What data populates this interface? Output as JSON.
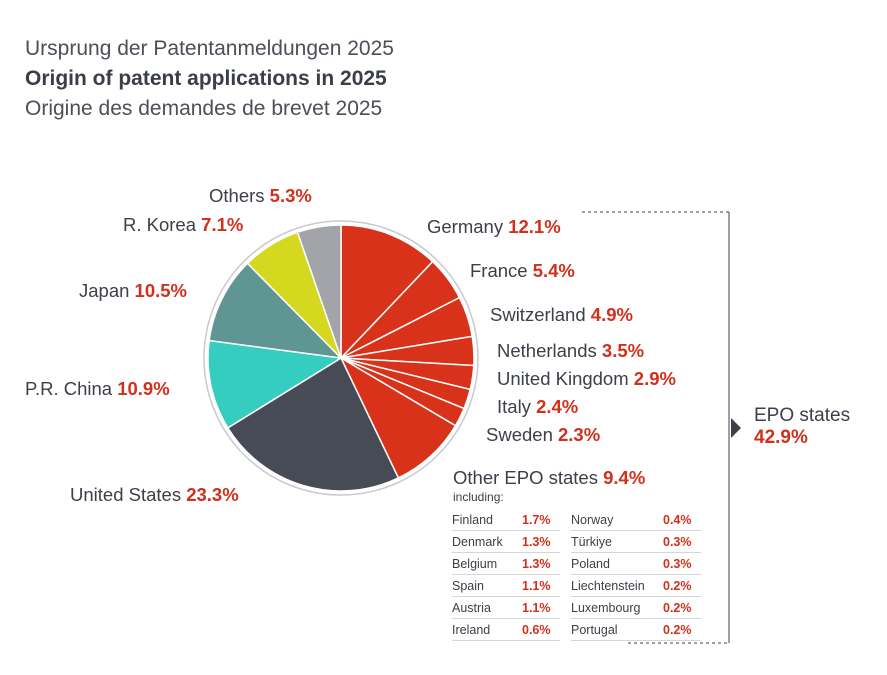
{
  "titles": {
    "de": "Ursprung der Patentanmeldungen 2025",
    "en": "Origin of patent applications in 2025",
    "fr": "Origine des demandes de brevet 2025"
  },
  "chart_data": {
    "type": "pie",
    "title": "Origin of patent applications in 2025",
    "slices": [
      {
        "name": "Germany",
        "pct_label": "12.1%",
        "value": 12.1,
        "color": "#d8321a"
      },
      {
        "name": "France",
        "pct_label": "5.4%",
        "value": 5.4,
        "color": "#d8321a"
      },
      {
        "name": "Switzerland",
        "pct_label": "4.9%",
        "value": 4.9,
        "color": "#d8321a"
      },
      {
        "name": "Netherlands",
        "pct_label": "3.5%",
        "value": 3.5,
        "color": "#d8321a"
      },
      {
        "name": "United Kingdom",
        "pct_label": "2.9%",
        "value": 2.9,
        "color": "#d8321a"
      },
      {
        "name": "Italy",
        "pct_label": "2.4%",
        "value": 2.4,
        "color": "#d8321a"
      },
      {
        "name": "Sweden",
        "pct_label": "2.3%",
        "value": 2.3,
        "color": "#d8321a"
      },
      {
        "name": "Other EPO states",
        "pct_label": "9.4%",
        "value": 9.4,
        "color": "#d8321a"
      },
      {
        "name": "United States",
        "pct_label": "23.3%",
        "value": 23.3,
        "color": "#464b56"
      },
      {
        "name": "P.R. China",
        "pct_label": "10.9%",
        "value": 10.9,
        "color": "#36cdc1"
      },
      {
        "name": "Japan",
        "pct_label": "10.5%",
        "value": 10.5,
        "color": "#5f9592"
      },
      {
        "name": "R. Korea",
        "pct_label": "7.1%",
        "value": 7.1,
        "color": "#d4d81e"
      },
      {
        "name": "Others",
        "pct_label": "5.3%",
        "value": 5.3,
        "color": "#a2a4aa"
      }
    ],
    "group": {
      "name": "EPO states",
      "pct_label": "42.9%",
      "value": 42.9
    },
    "other_epo": {
      "including_label": "including:",
      "col1": [
        {
          "country": "Finland",
          "pct": "1.7%"
        },
        {
          "country": "Denmark",
          "pct": "1.3%"
        },
        {
          "country": "Belgium",
          "pct": "1.3%"
        },
        {
          "country": "Spain",
          "pct": "1.1%"
        },
        {
          "country": "Austria",
          "pct": "1.1%"
        },
        {
          "country": "Ireland",
          "pct": "0.6%"
        }
      ],
      "col2": [
        {
          "country": "Norway",
          "pct": "0.4%"
        },
        {
          "country": "Türkiye",
          "pct": "0.3%"
        },
        {
          "country": "Poland",
          "pct": "0.3%"
        },
        {
          "country": "Liechtenstein",
          "pct": "0.2%"
        },
        {
          "country": "Luxembourg",
          "pct": "0.2%"
        },
        {
          "country": "Portugal",
          "pct": "0.2%"
        }
      ]
    }
  }
}
